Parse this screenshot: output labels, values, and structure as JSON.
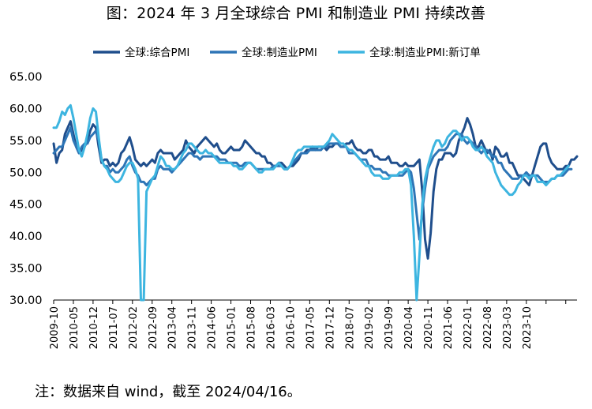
{
  "title": "图：2024 年 3 月全球综合 PMI 和制造业 PMI 持续改善",
  "note": "注：数据来自 wind，截至 2024/04/16。",
  "chart_data": {
    "type": "line",
    "ylim": [
      30,
      65
    ],
    "yticks": [
      "30.00",
      "35.00",
      "40.00",
      "45.00",
      "50.00",
      "55.00",
      "60.00",
      "65.00"
    ],
    "xticks": [
      "2009-10",
      "2010-05",
      "2010-12",
      "2011-07",
      "2012-02",
      "2012-09",
      "2013-04",
      "2013-11",
      "2014-06",
      "2015-01",
      "2015-08",
      "2016-03",
      "2016-10",
      "2017-05",
      "2017-12",
      "2018-07",
      "2019-02",
      "2019-09",
      "2020-04",
      "2020-11",
      "2021-06",
      "2022-01",
      "2022-08",
      "2023-03",
      "2023-10"
    ],
    "legend_position": "top",
    "grid": false,
    "series": [
      {
        "name": "全球:综合PMI",
        "color": "#1F4E8C",
        "values": [
          54.5,
          51.5,
          53,
          53.5,
          56,
          57,
          58,
          56,
          54,
          53,
          53.5,
          54,
          55,
          56.5,
          57.5,
          57,
          54,
          51.5,
          52,
          52,
          51,
          51.5,
          51,
          51.5,
          53,
          53.5,
          54.5,
          55.5,
          54,
          52,
          51.5,
          51,
          51.5,
          51,
          51.5,
          52,
          51.5,
          53,
          53.5,
          53,
          53,
          53,
          53,
          52,
          52.5,
          53,
          53.5,
          55,
          54,
          53.5,
          53,
          54,
          54.5,
          55,
          55.5,
          55,
          54.5,
          54,
          54.5,
          53.5,
          53,
          53,
          53.5,
          54,
          53.5,
          53.5,
          53.5,
          54,
          55,
          54.5,
          54,
          53.5,
          53,
          53,
          52.5,
          52.5,
          51.5,
          51.5,
          51,
          51,
          51.5,
          51.5,
          51,
          50.5,
          51,
          51,
          51.5,
          52,
          53,
          53,
          53.5,
          53.5,
          54,
          53.5,
          54,
          54,
          54,
          53.5,
          54,
          54,
          54.5,
          54.5,
          54,
          54,
          54.5,
          54.5,
          55,
          54,
          53.5,
          53.5,
          53,
          53,
          53.5,
          53.5,
          52.5,
          52.5,
          52,
          52,
          52,
          52.5,
          51.5,
          51.5,
          51.5,
          51,
          51,
          51.5,
          51,
          51,
          51,
          51.5,
          52,
          47,
          39.5,
          36.5,
          40.5,
          47,
          50.5,
          52,
          52,
          53,
          53,
          53,
          52.5,
          53,
          55,
          56,
          57,
          58.5,
          57.5,
          56,
          54,
          54,
          55,
          54,
          53,
          53.5,
          52,
          54,
          53.5,
          52.5,
          52.5,
          53,
          51.5,
          51.5,
          50.5,
          49.5,
          49.5,
          49,
          48.5,
          48,
          49.5,
          51,
          52.5,
          54,
          54.5,
          54.5,
          52.5,
          51.5,
          51,
          50.5,
          50.5,
          50.5,
          51,
          51,
          52,
          52,
          52.5
        ]
      },
      {
        "name": "全球:制造业PMI",
        "color": "#2E75B6",
        "values": [
          53,
          53.5,
          54,
          54,
          55,
          56,
          57,
          55,
          54,
          53,
          54,
          54.5,
          54.5,
          55.5,
          56,
          56.5,
          55,
          52,
          51,
          51,
          50,
          50.5,
          50,
          50,
          50.5,
          51,
          52,
          52.5,
          51,
          50,
          49.5,
          48.5,
          48.5,
          48,
          48.5,
          49,
          49,
          50.5,
          51,
          50.5,
          50.5,
          50.5,
          50,
          50.5,
          51,
          51.5,
          52,
          52.5,
          53,
          53,
          52.5,
          52.5,
          52,
          52.5,
          52.5,
          52.5,
          52.5,
          52.5,
          52.5,
          52,
          52,
          52,
          51.5,
          51.5,
          51.5,
          51.5,
          51,
          51,
          51.5,
          51.5,
          51.5,
          51,
          50.5,
          50.5,
          50.5,
          50.5,
          50.5,
          50.5,
          51,
          51,
          51,
          51,
          50.5,
          50.5,
          51,
          51.5,
          52,
          52.5,
          53,
          53,
          53,
          53.5,
          53.5,
          53.5,
          53.5,
          53.5,
          54,
          54,
          54.5,
          54.5,
          54.5,
          54.5,
          54,
          54,
          54,
          53,
          53,
          53,
          52.5,
          52,
          52,
          52,
          51,
          51,
          50.5,
          50.5,
          50.5,
          50,
          50,
          49.5,
          49.5,
          49.5,
          49.5,
          49.5,
          49.5,
          50,
          50.5,
          50,
          47.5,
          43.5,
          39.5,
          44,
          47.5,
          50.5,
          51.5,
          52.5,
          53,
          53.5,
          53.5,
          53.5,
          54,
          55,
          55.5,
          56,
          56,
          56,
          55,
          54.5,
          55,
          54.5,
          54,
          53.5,
          53,
          53.5,
          53.5,
          53,
          52.5,
          52.5,
          51.5,
          51.5,
          50.5,
          50,
          49.5,
          49,
          49,
          49,
          49.5,
          49.5,
          50,
          49.5,
          49.5,
          49.5,
          49.5,
          49,
          48.5,
          48.5,
          48.5,
          49,
          49,
          49.5,
          49.5,
          49.5,
          50,
          50.5,
          50.5
        ]
      },
      {
        "name": "全球:制造业PMI:新订单",
        "color": "#3DB5E0",
        "values": [
          57,
          57,
          58,
          59.5,
          59,
          60,
          60.5,
          58.5,
          56,
          53.5,
          52.5,
          54,
          56,
          58.5,
          60,
          59.5,
          55.5,
          52,
          51,
          50.5,
          49.5,
          49,
          48.5,
          48.5,
          49,
          50,
          51,
          51.5,
          51.5,
          50.5,
          49,
          30,
          30,
          47,
          48,
          49,
          49.5,
          51,
          52.5,
          52,
          51,
          51,
          50.5,
          50.5,
          51,
          52,
          53,
          53.5,
          54.5,
          54.5,
          54,
          53.5,
          53,
          53,
          53.5,
          53,
          53,
          52.5,
          52,
          51.5,
          51.5,
          51.5,
          51.5,
          51.5,
          51,
          51,
          50.5,
          50.5,
          51,
          51.5,
          51.5,
          51,
          50.5,
          50,
          50,
          50.5,
          50.5,
          50.5,
          50.5,
          51,
          51.5,
          51,
          50.5,
          50.5,
          51,
          52,
          53,
          53.5,
          53.5,
          54,
          54,
          54,
          54,
          54,
          54,
          54,
          54,
          54.5,
          55,
          56,
          55.5,
          55,
          54.5,
          54.5,
          54,
          53.5,
          53.5,
          53,
          52.5,
          52,
          51.5,
          51,
          51,
          50,
          49.5,
          49.5,
          49.5,
          49,
          49,
          49,
          49.5,
          49.5,
          49.5,
          50,
          50,
          50.5,
          50.5,
          48,
          40,
          30,
          37,
          45,
          49,
          51,
          52.5,
          54,
          55,
          55,
          54,
          54.5,
          55.5,
          56,
          56.5,
          56.5,
          56,
          55,
          55.5,
          55.5,
          55,
          54,
          53.5,
          53.5,
          54,
          53.5,
          52.5,
          52,
          51.5,
          50,
          49,
          48,
          47.5,
          47,
          46.5,
          46.5,
          47,
          48,
          48.5,
          49.5,
          49.5,
          49,
          49.5,
          49.5,
          48.5,
          48.5,
          48.5,
          48,
          48.5,
          49,
          49,
          49.5,
          49.5,
          50,
          50.5,
          51
        ]
      }
    ]
  }
}
